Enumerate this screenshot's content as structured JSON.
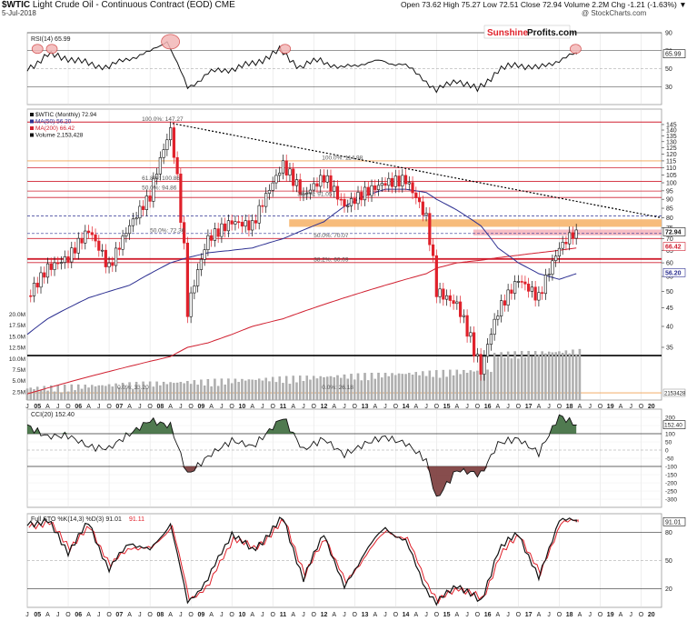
{
  "header": {
    "symbol": "$WTIC",
    "title_rest": " Light Crude Oil - Continuous Contract (EOD)  CME",
    "date": "5-Jul-2018",
    "ohlc": "Open 73.62  High 75.27  Low 72.51  Close 72.94  Volume 2.2M  Chg -1.21 (-1.63%) ▼",
    "credit": "@ StockCharts.com",
    "watermark_part1": "Sunshine",
    "watermark_part2": "Profits.com"
  },
  "colors": {
    "up": "#111111",
    "down": "#e0202a",
    "ma50": "#2e3192",
    "ma200": "#d02030",
    "volume": "#b0b0b0",
    "orange_zone": "#f6b56e",
    "red_zone": "#f4a7b0",
    "osc_fill": "#3d6b3d",
    "osc_fill_neg": "#7a3a3a",
    "stoch_d": "#e0202a"
  },
  "chart_data": [
    {
      "type": "line",
      "panel": "rsi",
      "legend": "RSI(14) 65.99",
      "ylim": [
        10,
        90
      ],
      "yticks": [
        30,
        50,
        70,
        90
      ],
      "last_value_label": "65.99",
      "x": [
        "2005-01",
        "2005-07",
        "2006-01",
        "2006-07",
        "2007-01",
        "2007-07",
        "2008-01",
        "2008-06",
        "2008-12",
        "2009-06",
        "2010-01",
        "2010-07",
        "2011-03",
        "2011-09",
        "2012-03",
        "2012-09",
        "2013-03",
        "2013-09",
        "2014-03",
        "2014-09",
        "2015-01",
        "2015-07",
        "2016-01",
        "2016-07",
        "2017-01",
        "2017-07",
        "2018-01",
        "2018-06"
      ],
      "y": [
        50,
        65,
        62,
        55,
        52,
        62,
        68,
        82,
        28,
        45,
        50,
        55,
        70,
        52,
        60,
        50,
        56,
        58,
        55,
        40,
        25,
        38,
        26,
        48,
        55,
        50,
        60,
        66
      ]
    },
    {
      "type": "candlestick",
      "panel": "price",
      "legend": [
        "$WTIC (Monthly) 72.94",
        "MA(50) 56.20",
        "MA(200) 66.42",
        "Volume 2,153,428"
      ],
      "scale": "log",
      "ylim": [
        25,
        160
      ],
      "yticks": [
        35,
        40,
        45,
        50,
        55,
        60,
        65,
        70,
        75,
        80,
        85,
        90,
        95,
        100,
        105,
        110,
        115,
        120,
        125,
        130,
        135,
        140,
        145
      ],
      "volume_ticks": [
        "20.0M",
        "17.5M",
        "15.0M",
        "12.5M",
        "10.0M",
        "7.5M",
        "5.0M",
        "2.5M"
      ],
      "last_close_label": "72.94",
      "ma200_label": "66.42",
      "ma50_label": "56.20",
      "vol_label": "2153428",
      "x": [
        "2005-01",
        "2005-07",
        "2006-01",
        "2006-07",
        "2007-01",
        "2007-07",
        "2008-01",
        "2008-07",
        "2008-12",
        "2009-06",
        "2010-01",
        "2010-07",
        "2011-04",
        "2011-10",
        "2012-04",
        "2012-10",
        "2013-04",
        "2013-10",
        "2014-04",
        "2014-10",
        "2015-01",
        "2015-07",
        "2016-02",
        "2016-07",
        "2017-01",
        "2017-07",
        "2018-01",
        "2018-06"
      ],
      "close": [
        48,
        58,
        62,
        74,
        58,
        76,
        92,
        140,
        44,
        70,
        78,
        76,
        112,
        92,
        104,
        86,
        94,
        100,
        102,
        80,
        50,
        46,
        30,
        44,
        54,
        48,
        66,
        74
      ],
      "ma50_key": [
        38,
        42,
        45,
        48,
        50,
        52,
        56,
        60,
        62,
        64,
        65,
        66,
        70,
        74,
        78,
        86,
        92,
        96,
        96,
        94,
        90,
        84,
        76,
        66,
        60,
        56,
        54,
        56
      ],
      "ma200_key": [
        26,
        27,
        28,
        29,
        30,
        31,
        32,
        33,
        35,
        36,
        38,
        40,
        42,
        44,
        46,
        48,
        50,
        52,
        54,
        56,
        58,
        60,
        61,
        62,
        63,
        64,
        65,
        66
      ]
    },
    {
      "type": "line",
      "panel": "cci",
      "legend": "CCI(20) 152.40",
      "ylim": [
        -350,
        250
      ],
      "yticks": [
        200,
        150,
        100,
        50,
        0,
        -50,
        -100,
        -150,
        -200,
        -250,
        -300
      ],
      "last_value_label": "152.40",
      "x": [
        "2005-01",
        "2005-07",
        "2006-01",
        "2006-07",
        "2007-01",
        "2007-07",
        "2008-01",
        "2008-07",
        "2008-12",
        "2009-06",
        "2010-01",
        "2010-07",
        "2011-04",
        "2011-10",
        "2012-04",
        "2012-10",
        "2013-04",
        "2013-10",
        "2014-04",
        "2014-10",
        "2015-01",
        "2015-07",
        "2016-02",
        "2016-07",
        "2017-01",
        "2017-07",
        "2018-01",
        "2018-06"
      ],
      "y": [
        150,
        80,
        90,
        20,
        10,
        100,
        180,
        150,
        -150,
        -40,
        60,
        20,
        200,
        0,
        70,
        -30,
        40,
        80,
        40,
        -60,
        -300,
        -120,
        -150,
        40,
        70,
        -20,
        210,
        152
      ]
    },
    {
      "type": "line",
      "panel": "stoch",
      "legend": [
        "Full STO %K(14,3) %D(3) 91.01",
        "91.11"
      ],
      "ylim": [
        0,
        100
      ],
      "yticks": [
        20,
        50,
        80
      ],
      "last_value_label": "91.01",
      "x": [
        "2005-01",
        "2005-07",
        "2006-01",
        "2006-07",
        "2007-01",
        "2007-07",
        "2008-01",
        "2008-07",
        "2008-12",
        "2009-06",
        "2010-01",
        "2010-07",
        "2011-04",
        "2011-10",
        "2012-04",
        "2012-10",
        "2013-04",
        "2013-10",
        "2014-04",
        "2014-10",
        "2015-01",
        "2015-07",
        "2016-02",
        "2016-07",
        "2017-01",
        "2017-07",
        "2018-01",
        "2018-06"
      ],
      "k": [
        90,
        92,
        60,
        90,
        40,
        70,
        60,
        90,
        5,
        30,
        80,
        60,
        95,
        30,
        80,
        20,
        60,
        85,
        70,
        20,
        4,
        25,
        5,
        60,
        80,
        30,
        95,
        91
      ],
      "d": [
        88,
        90,
        65,
        85,
        45,
        65,
        62,
        88,
        8,
        25,
        75,
        62,
        92,
        35,
        75,
        25,
        58,
        82,
        72,
        25,
        6,
        22,
        8,
        55,
        78,
        35,
        92,
        91
      ]
    }
  ],
  "x_axis": {
    "labels": [
      "J",
      "05",
      "A",
      "J",
      "O",
      "06",
      "A",
      "J",
      "O",
      "07",
      "A",
      "J",
      "O",
      "08",
      "A",
      "J",
      "O",
      "09",
      "A",
      "J",
      "O",
      "10",
      "A",
      "J",
      "O",
      "11",
      "A",
      "J",
      "O",
      "12",
      "A",
      "J",
      "O",
      "13",
      "A",
      "J",
      "O",
      "14",
      "A",
      "J",
      "O",
      "15",
      "A",
      "J",
      "O",
      "16",
      "A",
      "J",
      "O",
      "17",
      "A",
      "J",
      "O",
      "18",
      "A",
      "J",
      "O",
      "19",
      "A",
      "J",
      "O",
      "20"
    ],
    "years": [
      "05",
      "06",
      "07",
      "08",
      "09",
      "10",
      "11",
      "12",
      "13",
      "14",
      "15",
      "16",
      "17",
      "18",
      "19",
      "20"
    ]
  },
  "annotations": {
    "fib_100_top": "100.0%: 147.27",
    "fib_100_mid": "100.0%: 114.98",
    "fib_618_a": "61.8%: 100.86",
    "fib_500_a": "50.0%: 94.86",
    "fib_382_a": "38.2%: 91.05",
    "fib_500_b": "50.0%: 72.36",
    "fib_500_c": "50.0%: 70.07",
    "fib_382_b": "38.2%: 60.09",
    "fib_0_a": "0.0%: 33.20",
    "fib_0_b": "0.0%: 26.18"
  }
}
